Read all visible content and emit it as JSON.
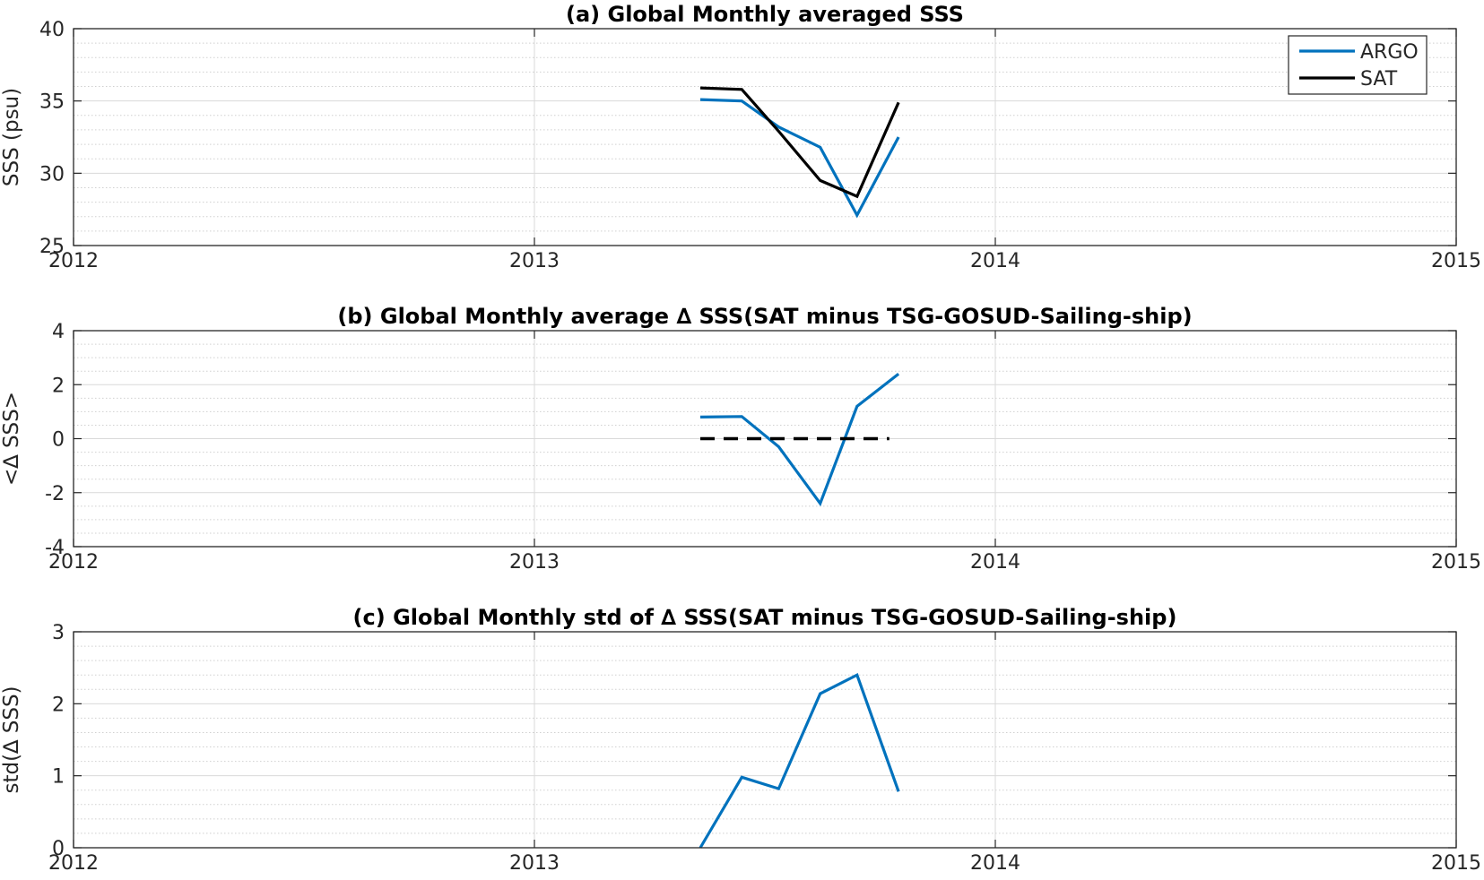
{
  "colors": {
    "argo": "#0072BD",
    "sat": "#000000",
    "grid_major": "#d9d9d9",
    "grid_minor": "#d0d0d0",
    "axes": "#262626"
  },
  "chart_data": [
    {
      "id": "a",
      "type": "line",
      "title": "(a) Global Monthly averaged SSS",
      "xlabel": "",
      "ylabel": "SSS (psu)",
      "xlim": [
        2012,
        2015
      ],
      "ylim": [
        25,
        40
      ],
      "xticks": [
        2012,
        2013,
        2014,
        2015
      ],
      "xtick_labels": [
        "2012",
        "2013",
        "2014",
        "2015"
      ],
      "yticks": [
        25,
        30,
        35,
        40
      ],
      "ytick_labels": [
        "25",
        "30",
        "35",
        "40"
      ],
      "minor_y_step": 1,
      "grid": true,
      "legend": {
        "position": "top-right",
        "entries": [
          "ARGO",
          "SAT"
        ]
      },
      "series": [
        {
          "name": "ARGO",
          "color_key": "argo",
          "style": "solid",
          "x": [
            2013.36,
            2013.45,
            2013.53,
            2013.62,
            2013.7,
            2013.79
          ],
          "y": [
            35.1,
            35.0,
            33.2,
            31.8,
            27.1,
            32.5
          ]
        },
        {
          "name": "SAT",
          "color_key": "sat",
          "style": "solid",
          "x": [
            2013.36,
            2013.45,
            2013.53,
            2013.62,
            2013.7,
            2013.79
          ],
          "y": [
            35.9,
            35.8,
            32.9,
            29.5,
            28.4,
            34.9
          ]
        }
      ]
    },
    {
      "id": "b",
      "type": "line",
      "title": "(b) Global Monthly average ∆ SSS(SAT minus TSG-GOSUD-Sailing-ship)",
      "xlabel": "",
      "ylabel": "<∆ SSS>",
      "xlim": [
        2012,
        2015
      ],
      "ylim": [
        -4,
        4
      ],
      "xticks": [
        2012,
        2013,
        2014,
        2015
      ],
      "xtick_labels": [
        "2012",
        "2013",
        "2014",
        "2015"
      ],
      "yticks": [
        -4,
        -2,
        0,
        2,
        4
      ],
      "ytick_labels": [
        "-4",
        "-2",
        "0",
        "2",
        "4"
      ],
      "minor_y_step": 0.5,
      "grid": true,
      "series": [
        {
          "color_key": "argo",
          "style": "solid",
          "x": [
            2013.36,
            2013.45,
            2013.53,
            2013.62,
            2013.7,
            2013.79
          ],
          "y": [
            0.8,
            0.82,
            -0.3,
            -2.4,
            1.2,
            2.4
          ]
        },
        {
          "color_key": "sat",
          "style": "dashed",
          "x": [
            2013.36,
            2013.77
          ],
          "y": [
            0,
            0
          ]
        }
      ]
    },
    {
      "id": "c",
      "type": "line",
      "title": "(c) Global Monthly std of ∆ SSS(SAT minus TSG-GOSUD-Sailing-ship)",
      "xlabel": "",
      "ylabel": "std(∆ SSS)",
      "xlim": [
        2012,
        2015
      ],
      "ylim": [
        0,
        3
      ],
      "xticks": [
        2012,
        2013,
        2014,
        2015
      ],
      "xtick_labels": [
        "2012",
        "2013",
        "2014",
        "2015"
      ],
      "yticks": [
        0,
        1,
        2,
        3
      ],
      "ytick_labels": [
        "0",
        "1",
        "2",
        "3"
      ],
      "minor_y_step": 0.2,
      "grid": true,
      "series": [
        {
          "color_key": "argo",
          "style": "solid",
          "x": [
            2013.36,
            2013.45,
            2013.53,
            2013.62,
            2013.7,
            2013.79
          ],
          "y": [
            0.0,
            0.98,
            0.82,
            2.14,
            2.4,
            0.78
          ]
        }
      ]
    }
  ]
}
